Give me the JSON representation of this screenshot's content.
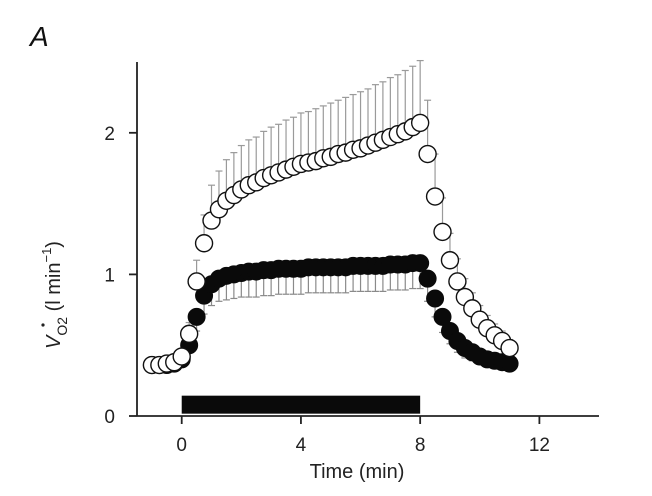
{
  "chart_data": {
    "type": "scatter",
    "panel_label": "A",
    "xlabel": "Time (min)",
    "ylabel": "V̇O₂ (l min⁻¹)",
    "ylabel_parts": {
      "v": "V",
      "sub": "O2",
      "unit": "(l min",
      "exp": "−1",
      "close": ")"
    },
    "xlim": [
      -1.5,
      14
    ],
    "ylim": [
      0,
      2.5
    ],
    "x_ticks": [
      0,
      4,
      8,
      12
    ],
    "x_tick_labels": [
      "0",
      "4",
      "8",
      "12"
    ],
    "y_ticks": [
      0,
      1,
      2
    ],
    "y_tick_labels": [
      "0",
      "1",
      "2"
    ],
    "exercise_bar": {
      "x_start": 0,
      "x_end": 8,
      "y": 0.08
    },
    "series": [
      {
        "marker": "open-circle",
        "error_bars": "up",
        "points": [
          {
            "x": -1.0,
            "y": 0.36,
            "e": 0.02
          },
          {
            "x": -0.75,
            "y": 0.36,
            "e": 0.02
          },
          {
            "x": -0.5,
            "y": 0.37,
            "e": 0.02
          },
          {
            "x": -0.25,
            "y": 0.38,
            "e": 0.03
          },
          {
            "x": 0.0,
            "y": 0.42,
            "e": 0.04
          },
          {
            "x": 0.25,
            "y": 0.58,
            "e": 0.08
          },
          {
            "x": 0.5,
            "y": 0.95,
            "e": 0.15
          },
          {
            "x": 0.75,
            "y": 1.22,
            "e": 0.2
          },
          {
            "x": 1.0,
            "y": 1.38,
            "e": 0.25
          },
          {
            "x": 1.25,
            "y": 1.46,
            "e": 0.27
          },
          {
            "x": 1.5,
            "y": 1.52,
            "e": 0.29
          },
          {
            "x": 1.75,
            "y": 1.56,
            "e": 0.3
          },
          {
            "x": 2.0,
            "y": 1.6,
            "e": 0.31
          },
          {
            "x": 2.25,
            "y": 1.63,
            "e": 0.32
          },
          {
            "x": 2.5,
            "y": 1.65,
            "e": 0.32
          },
          {
            "x": 2.75,
            "y": 1.68,
            "e": 0.33
          },
          {
            "x": 3.0,
            "y": 1.7,
            "e": 0.34
          },
          {
            "x": 3.25,
            "y": 1.72,
            "e": 0.34
          },
          {
            "x": 3.5,
            "y": 1.74,
            "e": 0.35
          },
          {
            "x": 3.75,
            "y": 1.76,
            "e": 0.35
          },
          {
            "x": 4.0,
            "y": 1.78,
            "e": 0.36
          },
          {
            "x": 4.25,
            "y": 1.79,
            "e": 0.36
          },
          {
            "x": 4.5,
            "y": 1.8,
            "e": 0.37
          },
          {
            "x": 4.75,
            "y": 1.82,
            "e": 0.37
          },
          {
            "x": 5.0,
            "y": 1.83,
            "e": 0.38
          },
          {
            "x": 5.25,
            "y": 1.85,
            "e": 0.38
          },
          {
            "x": 5.5,
            "y": 1.86,
            "e": 0.39
          },
          {
            "x": 5.75,
            "y": 1.88,
            "e": 0.39
          },
          {
            "x": 6.0,
            "y": 1.89,
            "e": 0.4
          },
          {
            "x": 6.25,
            "y": 1.91,
            "e": 0.4
          },
          {
            "x": 6.5,
            "y": 1.93,
            "e": 0.41
          },
          {
            "x": 6.75,
            "y": 1.95,
            "e": 0.41
          },
          {
            "x": 7.0,
            "y": 1.97,
            "e": 0.42
          },
          {
            "x": 7.25,
            "y": 1.99,
            "e": 0.42
          },
          {
            "x": 7.5,
            "y": 2.01,
            "e": 0.43
          },
          {
            "x": 7.75,
            "y": 2.04,
            "e": 0.43
          },
          {
            "x": 8.0,
            "y": 2.07,
            "e": 0.44
          },
          {
            "x": 8.25,
            "y": 1.85,
            "e": 0.38
          },
          {
            "x": 8.5,
            "y": 1.55,
            "e": 0.3
          },
          {
            "x": 8.75,
            "y": 1.3,
            "e": 0.24
          },
          {
            "x": 9.0,
            "y": 1.1,
            "e": 0.19
          },
          {
            "x": 9.25,
            "y": 0.95,
            "e": 0.16
          },
          {
            "x": 9.5,
            "y": 0.84,
            "e": 0.13
          },
          {
            "x": 9.75,
            "y": 0.76,
            "e": 0.11
          },
          {
            "x": 10.0,
            "y": 0.68,
            "e": 0.1
          },
          {
            "x": 10.25,
            "y": 0.62,
            "e": 0.09
          },
          {
            "x": 10.5,
            "y": 0.57,
            "e": 0.08
          },
          {
            "x": 10.75,
            "y": 0.53,
            "e": 0.07
          },
          {
            "x": 11.0,
            "y": 0.48,
            "e": 0.06
          }
        ]
      },
      {
        "marker": "filled-circle",
        "error_bars": "down",
        "points": [
          {
            "x": -1.0,
            "y": 0.36,
            "e": 0.02
          },
          {
            "x": -0.75,
            "y": 0.36,
            "e": 0.02
          },
          {
            "x": -0.5,
            "y": 0.36,
            "e": 0.02
          },
          {
            "x": -0.25,
            "y": 0.37,
            "e": 0.02
          },
          {
            "x": 0.0,
            "y": 0.4,
            "e": 0.03
          },
          {
            "x": 0.25,
            "y": 0.5,
            "e": 0.05
          },
          {
            "x": 0.5,
            "y": 0.7,
            "e": 0.1
          },
          {
            "x": 0.75,
            "y": 0.85,
            "e": 0.13
          },
          {
            "x": 1.0,
            "y": 0.93,
            "e": 0.15
          },
          {
            "x": 1.25,
            "y": 0.97,
            "e": 0.16
          },
          {
            "x": 1.5,
            "y": 0.99,
            "e": 0.17
          },
          {
            "x": 1.75,
            "y": 1.0,
            "e": 0.17
          },
          {
            "x": 2.0,
            "y": 1.01,
            "e": 0.17
          },
          {
            "x": 2.25,
            "y": 1.02,
            "e": 0.18
          },
          {
            "x": 2.5,
            "y": 1.02,
            "e": 0.18
          },
          {
            "x": 2.75,
            "y": 1.03,
            "e": 0.18
          },
          {
            "x": 3.0,
            "y": 1.03,
            "e": 0.18
          },
          {
            "x": 3.25,
            "y": 1.04,
            "e": 0.18
          },
          {
            "x": 3.5,
            "y": 1.04,
            "e": 0.18
          },
          {
            "x": 3.75,
            "y": 1.04,
            "e": 0.18
          },
          {
            "x": 4.0,
            "y": 1.04,
            "e": 0.18
          },
          {
            "x": 4.25,
            "y": 1.05,
            "e": 0.18
          },
          {
            "x": 4.5,
            "y": 1.05,
            "e": 0.18
          },
          {
            "x": 4.75,
            "y": 1.05,
            "e": 0.18
          },
          {
            "x": 5.0,
            "y": 1.05,
            "e": 0.18
          },
          {
            "x": 5.25,
            "y": 1.05,
            "e": 0.18
          },
          {
            "x": 5.5,
            "y": 1.05,
            "e": 0.18
          },
          {
            "x": 5.75,
            "y": 1.06,
            "e": 0.18
          },
          {
            "x": 6.0,
            "y": 1.06,
            "e": 0.18
          },
          {
            "x": 6.25,
            "y": 1.06,
            "e": 0.18
          },
          {
            "x": 6.5,
            "y": 1.06,
            "e": 0.18
          },
          {
            "x": 6.75,
            "y": 1.06,
            "e": 0.18
          },
          {
            "x": 7.0,
            "y": 1.07,
            "e": 0.18
          },
          {
            "x": 7.25,
            "y": 1.07,
            "e": 0.18
          },
          {
            "x": 7.5,
            "y": 1.07,
            "e": 0.18
          },
          {
            "x": 7.75,
            "y": 1.08,
            "e": 0.18
          },
          {
            "x": 8.0,
            "y": 1.08,
            "e": 0.18
          },
          {
            "x": 8.25,
            "y": 0.97,
            "e": 0.16
          },
          {
            "x": 8.5,
            "y": 0.83,
            "e": 0.13
          },
          {
            "x": 8.75,
            "y": 0.7,
            "e": 0.11
          },
          {
            "x": 9.0,
            "y": 0.6,
            "e": 0.09
          },
          {
            "x": 9.25,
            "y": 0.53,
            "e": 0.08
          },
          {
            "x": 9.5,
            "y": 0.48,
            "e": 0.07
          },
          {
            "x": 9.75,
            "y": 0.45,
            "e": 0.06
          },
          {
            "x": 10.0,
            "y": 0.42,
            "e": 0.05
          },
          {
            "x": 10.25,
            "y": 0.4,
            "e": 0.05
          },
          {
            "x": 10.5,
            "y": 0.39,
            "e": 0.04
          },
          {
            "x": 10.75,
            "y": 0.38,
            "e": 0.04
          },
          {
            "x": 11.0,
            "y": 0.37,
            "e": 0.04
          }
        ]
      }
    ]
  }
}
